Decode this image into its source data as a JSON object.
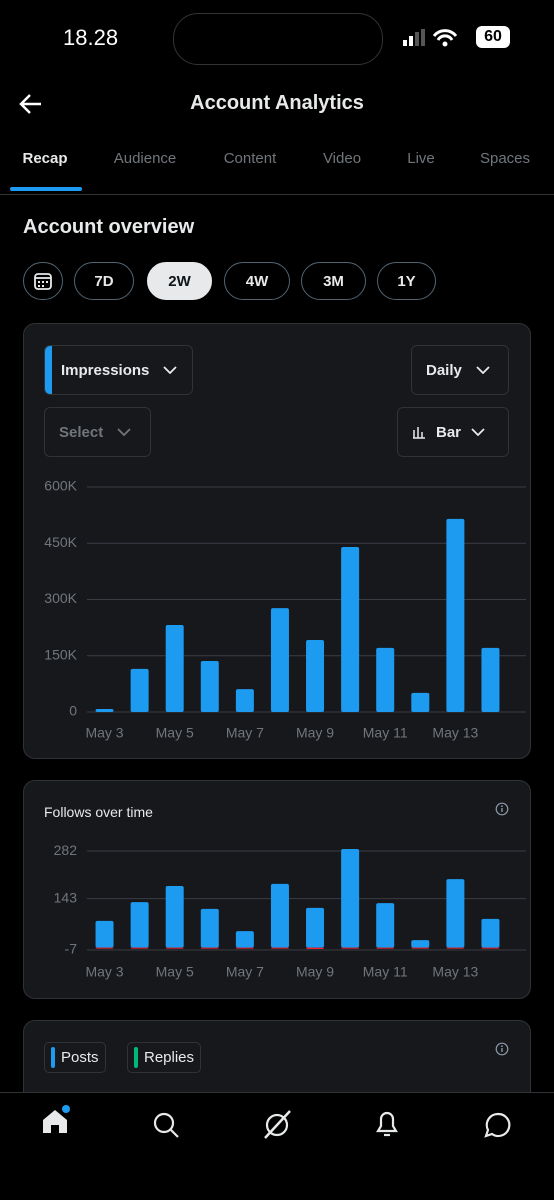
{
  "status_bar": {
    "time": "18.28",
    "battery": "60"
  },
  "header": {
    "title": "Account Analytics"
  },
  "tabs": {
    "items": [
      "Recap",
      "Audience",
      "Content",
      "Video",
      "Live",
      "Spaces"
    ],
    "selected": 0
  },
  "section_title": "Account overview",
  "periods": {
    "items": [
      "7D",
      "2W",
      "4W",
      "3M",
      "1Y"
    ],
    "selected": 1
  },
  "controls": {
    "metric": "Impressions",
    "interval": "Daily",
    "compare": "Select",
    "chart_style": "Bar"
  },
  "chart_data": [
    {
      "type": "bar",
      "categories": [
        "May 3",
        null,
        "May 5",
        null,
        "May 7",
        null,
        "May 9",
        null,
        "May 11",
        null,
        "May 13",
        null
      ],
      "series": [
        {
          "color": "#1d9bf0",
          "values": [
            8000,
            115000,
            232000,
            136000,
            61000,
            277000,
            192000,
            440000,
            171000,
            51000,
            515000,
            171000
          ]
        }
      ],
      "ylim": [
        0,
        600000
      ],
      "yticks": [
        0,
        {
          "value": 150000,
          "label": "150K"
        },
        {
          "value": 300000,
          "label": "300K"
        },
        {
          "value": 450000,
          "label": "450K"
        },
        {
          "value": 600000,
          "label": "600K"
        }
      ],
      "grid": true
    },
    {
      "type": "bar",
      "title": "Follows over time",
      "categories": [
        "May 3",
        null,
        "May 5",
        null,
        "May 7",
        null,
        "May 9",
        null,
        "May 11",
        null,
        "May 13",
        null
      ],
      "series": [
        {
          "color": "#1d9bf0",
          "values": [
            78,
            133,
            180,
            113,
            48,
            186,
            116,
            288,
            130,
            22,
            200,
            84
          ]
        },
        {
          "color": "#f4212e",
          "values": [
            -1,
            -2,
            -3,
            -1,
            -2,
            -2,
            -4,
            -3,
            -2,
            -1,
            -3,
            -1
          ]
        }
      ],
      "ylim": [
        -7,
        295
      ],
      "yticks": [
        -7,
        143,
        282
      ],
      "grid": true
    }
  ],
  "breakdown": {
    "legend": [
      {
        "name": "Posts",
        "color": "#1d9bf0"
      },
      {
        "name": "Replies",
        "color": "#00ba7c"
      }
    ]
  }
}
